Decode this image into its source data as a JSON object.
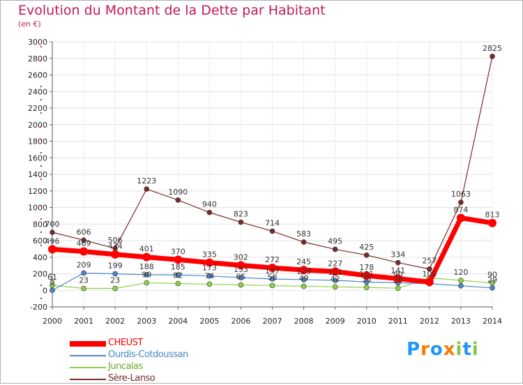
{
  "title": "Evolution du Montant de la Dette par Habitant",
  "subtitle": "(en €)",
  "logo": {
    "text": "Proxiti",
    "colors": [
      "#2196f3",
      "#f57c00",
      "#2196f3",
      "#f57c00",
      "#8bc34a",
      "#2196f3",
      "#8bc34a"
    ]
  },
  "chart_data": {
    "type": "line",
    "x": [
      "2000",
      "2001",
      "2002",
      "2003",
      "2004",
      "2005",
      "2006",
      "2007",
      "2008",
      "2009",
      "2010",
      "2011",
      "2012",
      "2013",
      "2014"
    ],
    "ylim": [
      -200,
      3000
    ],
    "yticks": [
      "-200",
      "0",
      "200",
      "400",
      "600",
      "800",
      "1000",
      "1200",
      "1400",
      "1600",
      "1800",
      "2000",
      "2200",
      "2400",
      "2600",
      "2800",
      "3000"
    ],
    "grid": true,
    "legend_placement": "bottom-left",
    "series": [
      {
        "name": "Sère-Lanso",
        "color": "#7b2a2a",
        "stroke": 1.2,
        "marker": 3.5,
        "values": [
          700,
          606,
          506,
          1223,
          1090,
          940,
          823,
          714,
          583,
          495,
          425,
          334,
          257,
          1063,
          2825
        ],
        "labels": [
          "700",
          "606",
          "506",
          "1223",
          "1090",
          "940",
          "823",
          "714",
          "583",
          "495",
          "425",
          "334",
          "257",
          "1063",
          "2825"
        ]
      },
      {
        "name": "Juncalas",
        "color": "#8ed048",
        "stroke": 1.2,
        "marker": 3.5,
        "values": [
          61,
          23,
          23,
          90,
          82,
          74,
          65,
          58,
          49,
          42,
          35,
          26,
          150,
          120,
          90
        ],
        "labels": [
          "61",
          "23",
          "23",
          "90",
          "82",
          "74",
          "65",
          "58",
          "49",
          "42",
          "35",
          "26",
          "",
          "120",
          "90"
        ]
      },
      {
        "name": "Ourdis-Cotdoussan",
        "color": "#4a86c6",
        "stroke": 1.2,
        "marker": 3.5,
        "values": [
          0,
          209,
          199,
          188,
          185,
          173,
          153,
          137,
          129,
          121,
          101,
          90,
          80,
          55,
          29
        ],
        "labels": [
          "0",
          "209",
          "199",
          "188",
          "185",
          "173",
          "153",
          "137",
          "129",
          "121",
          "101",
          "90",
          "",
          "",
          "29"
        ]
      },
      {
        "name": "CHEUST",
        "color": "#ff0000",
        "stroke": 7,
        "marker": 6,
        "values": [
          496,
          469,
          434,
          401,
          370,
          335,
          302,
          272,
          245,
          227,
          178,
          141,
          100,
          874,
          813
        ],
        "labels": [
          "496",
          "469",
          "434",
          "401",
          "370",
          "335",
          "302",
          "272",
          "245",
          "227",
          "178",
          "141",
          "100",
          "874",
          "813"
        ]
      }
    ],
    "legend": [
      "CHEUST",
      "Ourdis-Cotdoussan",
      "Juncalas",
      "Sère-Lanso"
    ]
  }
}
